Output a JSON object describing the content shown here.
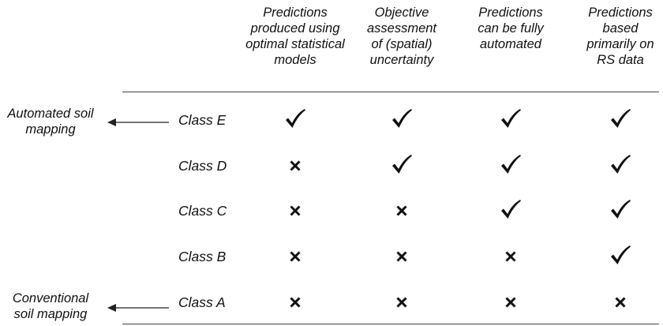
{
  "columns": [
    {
      "id": "optimal-models",
      "lines": [
        "Predictions",
        "produced using",
        "optimal statistical",
        "models"
      ]
    },
    {
      "id": "uncertainty",
      "lines": [
        "Objective",
        "assessment",
        "of (spatial)",
        "uncertainty"
      ]
    },
    {
      "id": "automated",
      "lines": [
        "Predictions",
        "can be fully",
        "automated"
      ]
    },
    {
      "id": "rs-data",
      "lines": [
        "Predictions",
        "based",
        "primarily on",
        "RS data"
      ]
    }
  ],
  "rows": [
    {
      "label": "Class E",
      "marks": [
        "check",
        "check",
        "check",
        "check"
      ]
    },
    {
      "label": "Class D",
      "marks": [
        "cross",
        "check",
        "check",
        "check"
      ]
    },
    {
      "label": "Class C",
      "marks": [
        "cross",
        "cross",
        "check",
        "check"
      ]
    },
    {
      "label": "Class B",
      "marks": [
        "cross",
        "cross",
        "cross",
        "check"
      ]
    },
    {
      "label": "Class A",
      "marks": [
        "cross",
        "cross",
        "cross",
        "cross"
      ]
    }
  ],
  "annotations": {
    "automated": {
      "lines": [
        "Automated soil",
        "mapping"
      ]
    },
    "conventional": {
      "lines": [
        "Conventional",
        "soil mapping"
      ]
    }
  }
}
